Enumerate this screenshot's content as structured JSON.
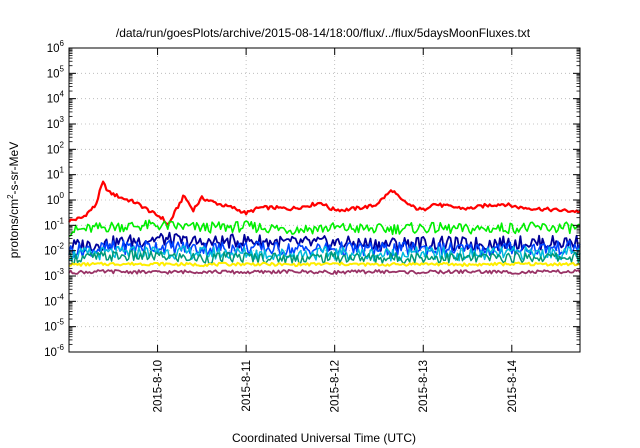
{
  "chart_data": {
    "type": "line",
    "title": "/data/run/goesPlots/archive/2015-08-14/18:00/flux/../flux/5daysMoonFluxes.txt",
    "xlabel": "Coordinated Universal Time (UTC)",
    "ylabel_parts": [
      "protons/cm",
      "2",
      "-s-sr-MeV"
    ],
    "yscale": "log",
    "ylim_exp": [
      -6,
      6
    ],
    "y_tick_base": "10",
    "y_tick_exponents": [
      "-6",
      "-5",
      "-4",
      "-3",
      "-2",
      "-1",
      "0",
      "1",
      "2",
      "3",
      "4",
      "5",
      "6"
    ],
    "x_start_day": 9.0,
    "x_end_day": 14.77,
    "x_ticks": [
      {
        "day": 10,
        "label": "2015-8-10"
      },
      {
        "day": 11,
        "label": "2015-8-11"
      },
      {
        "day": 12,
        "label": "2015-8-12"
      },
      {
        "day": 13,
        "label": "2015-8-13"
      },
      {
        "day": 14,
        "label": "2015-8-14"
      }
    ],
    "grid": true,
    "series": [
      {
        "color": "#ff0000",
        "width": 2.2,
        "x": [
          9.0,
          9.15,
          9.3,
          9.38,
          9.45,
          9.6,
          9.75,
          9.85,
          9.95,
          10.05,
          10.12,
          10.2,
          10.3,
          10.4,
          10.5,
          10.6,
          10.75,
          10.85,
          11.0,
          11.15,
          11.3,
          11.5,
          11.7,
          11.85,
          11.95,
          12.1,
          12.3,
          12.45,
          12.55,
          12.65,
          12.75,
          12.9,
          13.0,
          13.1,
          13.3,
          13.5,
          13.7,
          13.9,
          14.1,
          14.3,
          14.5,
          14.77
        ],
        "y": [
          0.15,
          0.2,
          0.6,
          5.0,
          2.0,
          1.2,
          0.8,
          0.5,
          0.3,
          0.2,
          0.1,
          0.35,
          1.5,
          0.4,
          1.2,
          0.9,
          0.6,
          0.5,
          0.3,
          0.5,
          0.5,
          0.45,
          0.6,
          0.8,
          0.45,
          0.4,
          0.5,
          0.6,
          1.2,
          2.5,
          1.0,
          0.5,
          0.4,
          0.7,
          0.55,
          0.45,
          0.6,
          0.7,
          0.5,
          0.45,
          0.4,
          0.35
        ]
      },
      {
        "color": "#00ee00",
        "width": 1.6,
        "x": [
          9.0,
          9.5,
          10.0,
          10.5,
          11.0,
          11.5,
          12.0,
          12.5,
          13.0,
          13.5,
          14.0,
          14.77
        ],
        "y": [
          0.06,
          0.09,
          0.1,
          0.08,
          0.09,
          0.07,
          0.08,
          0.07,
          0.08,
          0.07,
          0.08,
          0.08
        ]
      },
      {
        "color": "#000099",
        "width": 1.8,
        "x": [
          9.0,
          9.5,
          10.0,
          10.5,
          11.0,
          11.5,
          12.0,
          12.5,
          13.0,
          13.5,
          14.0,
          14.77
        ],
        "y": [
          0.015,
          0.02,
          0.03,
          0.02,
          0.025,
          0.02,
          0.02,
          0.018,
          0.02,
          0.018,
          0.02,
          0.022
        ]
      },
      {
        "color": "#0044ff",
        "width": 1.6,
        "x": [
          9.0,
          9.5,
          10.0,
          10.5,
          11.0,
          11.5,
          12.0,
          12.5,
          13.0,
          13.5,
          14.0,
          14.77
        ],
        "y": [
          0.01,
          0.013,
          0.015,
          0.012,
          0.013,
          0.011,
          0.012,
          0.011,
          0.012,
          0.011,
          0.012,
          0.013
        ]
      },
      {
        "color": "#00bbdd",
        "width": 1.5,
        "x": [
          9.0,
          9.5,
          10.0,
          10.5,
          11.0,
          11.5,
          12.0,
          12.5,
          13.0,
          13.5,
          14.0,
          14.77
        ],
        "y": [
          0.007,
          0.008,
          0.009,
          0.008,
          0.008,
          0.007,
          0.008,
          0.007,
          0.008,
          0.007,
          0.008,
          0.008
        ]
      },
      {
        "color": "#009977",
        "width": 1.5,
        "x": [
          9.0,
          9.5,
          10.0,
          10.5,
          11.0,
          11.5,
          12.0,
          12.5,
          13.0,
          13.5,
          14.0,
          14.77
        ],
        "y": [
          0.005,
          0.006,
          0.006,
          0.005,
          0.0055,
          0.005,
          0.0055,
          0.005,
          0.0055,
          0.005,
          0.0055,
          0.0055
        ]
      },
      {
        "color": "#ffee00",
        "width": 2.0,
        "x": [
          9.0,
          9.5,
          10.0,
          10.5,
          11.0,
          11.5,
          12.0,
          12.5,
          13.0,
          13.5,
          14.0,
          14.77
        ],
        "y": [
          0.0028,
          0.003,
          0.003,
          0.0028,
          0.003,
          0.0028,
          0.003,
          0.0028,
          0.003,
          0.0028,
          0.003,
          0.0029
        ]
      },
      {
        "color": "#993366",
        "width": 1.8,
        "x": [
          9.0,
          9.5,
          10.0,
          10.5,
          11.0,
          11.5,
          12.0,
          12.5,
          13.0,
          13.5,
          14.0,
          14.77
        ],
        "y": [
          0.0014,
          0.0015,
          0.0014,
          0.0015,
          0.0014,
          0.0015,
          0.0014,
          0.0015,
          0.0014,
          0.0015,
          0.0014,
          0.0015
        ]
      }
    ]
  }
}
